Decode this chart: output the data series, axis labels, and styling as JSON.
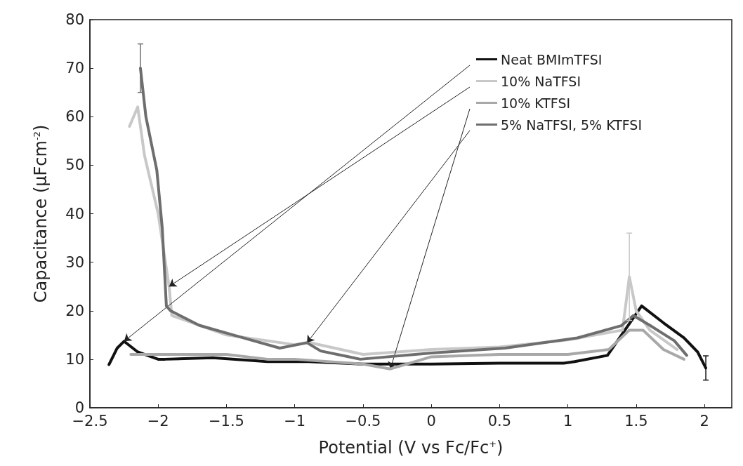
{
  "chart_data": {
    "type": "line",
    "xlabel": "Potential (V vs Fc/Fc$^{+}$)",
    "ylabel": "Capacitance (µFcm$^{-2}$)",
    "xlim": [
      -2.5,
      2.2
    ],
    "ylim": [
      0,
      80
    ],
    "xticks": [
      {
        "value": -2.5,
        "label": "−2.5"
      },
      {
        "value": -2,
        "label": "−2"
      },
      {
        "value": -1.5,
        "label": "−1.5"
      },
      {
        "value": -1,
        "label": "−1"
      },
      {
        "value": -0.5,
        "label": "−0.5"
      },
      0,
      0.5,
      1,
      1.5,
      2
    ],
    "yticks": [
      0,
      10,
      20,
      30,
      40,
      50,
      60,
      70,
      80
    ],
    "legend": "top right",
    "grid": false,
    "marker": "none",
    "series": [
      {
        "name": "Neat BMImTFSI",
        "color": "#111111",
        "x": [
          -2.36,
          -2.3,
          -2.25,
          -2.15,
          -2.1,
          -2.0,
          -1.95,
          -1.6,
          -1.2,
          -0.9,
          -0.5,
          0,
          0.5,
          0.97,
          1.05,
          1.29,
          1.54,
          1.7,
          1.85,
          1.95,
          2.01
        ],
        "values": [
          8.9,
          12.3,
          13.7,
          11.5,
          11,
          10,
          10,
          10.3,
          9.5,
          9.5,
          9,
          9,
          9.2,
          9.2,
          9.5,
          10.8,
          21,
          17.5,
          14.4,
          11.5,
          8.2
        ],
        "errors": [
          null,
          null,
          null,
          null,
          null,
          null,
          null,
          null,
          null,
          null,
          null,
          null,
          null,
          null,
          null,
          null,
          null,
          null,
          null,
          null,
          2.5
        ]
      },
      {
        "name": "10% NaTFSI",
        "color": "#c8c8c8",
        "x": [
          -2.21,
          -2.15,
          -2.1,
          -2.0,
          -1.92,
          -1.9,
          -1.5,
          -1.0,
          -0.9,
          -0.5,
          0,
          0.5,
          1.0,
          1.4,
          1.45,
          1.5,
          1.6,
          1.8
        ],
        "values": [
          58,
          62,
          52,
          40,
          25,
          19,
          15,
          13,
          13.5,
          11,
          12,
          12.5,
          14,
          16,
          27,
          20,
          16,
          12
        ],
        "errors": [
          null,
          null,
          null,
          null,
          null,
          null,
          null,
          null,
          null,
          null,
          null,
          null,
          null,
          null,
          9,
          null,
          null,
          null
        ]
      },
      {
        "name": "10% KTFSI",
        "color": "#a8a8a8",
        "x": [
          -2.2,
          -1.8,
          -1.5,
          -1.2,
          -1.0,
          -0.5,
          -0.3,
          0,
          0.5,
          1.0,
          1.3,
          1.45,
          1.55,
          1.7,
          1.85
        ],
        "values": [
          11,
          11,
          11,
          10,
          10,
          9,
          8,
          10.5,
          11,
          11,
          12,
          16,
          16,
          12,
          10
        ]
      },
      {
        "name": "5% NaTFSI, 5% KTFSI",
        "color": "#6e6e6e",
        "x": [
          -2.13,
          -2.09,
          -2.01,
          -1.97,
          -1.94,
          -1.91,
          -1.7,
          -1.4,
          -1.11,
          -0.91,
          -0.81,
          -0.62,
          -0.52,
          0,
          0.54,
          1.07,
          1.39,
          1.48,
          1.6,
          1.78,
          1.87
        ],
        "values": [
          70,
          60,
          49,
          37,
          21,
          20,
          17,
          14.6,
          12.3,
          13.4,
          11.7,
          10.6,
          10,
          11.3,
          12.3,
          14.4,
          16.9,
          19,
          17,
          13.8,
          10.8
        ],
        "errors": [
          5,
          null,
          null,
          null,
          null,
          null,
          null,
          null,
          null,
          null,
          null,
          null,
          null,
          null,
          null,
          null,
          null,
          null,
          null,
          null,
          null
        ]
      }
    ]
  }
}
